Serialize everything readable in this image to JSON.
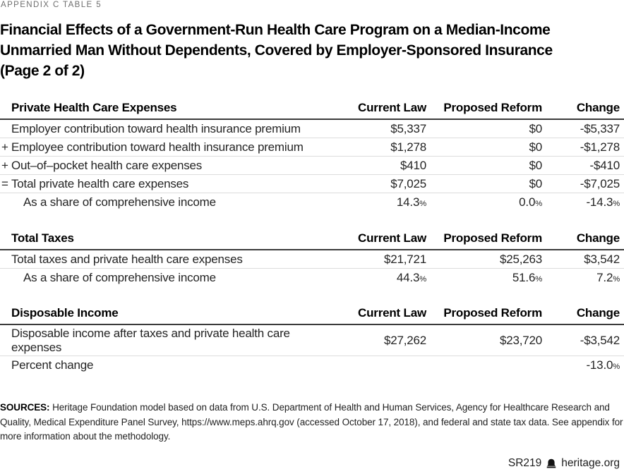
{
  "kicker": "APPENDIX C TABLE 5",
  "title": {
    "line1": "Financial Effects of a Government-Run Health Care Program on a Median-Income",
    "line2": "Unmarried Man Without Dependents, Covered by Employer-Sponsored Insurance",
    "line3": "(Page 2 of 2)"
  },
  "tables": [
    {
      "section": "Private Health Care Expenses",
      "columns": [
        "Current Law",
        "Proposed Reform",
        "Change"
      ],
      "rows": [
        {
          "marker": "",
          "label": "Employer contribution toward health insurance premium",
          "current_law": "$5,337",
          "proposed_reform": "$0",
          "change": "-$5,337"
        },
        {
          "marker": "+",
          "label": "Employee contribution toward health insurance premium",
          "current_law": "$1,278",
          "proposed_reform": "$0",
          "change": "-$1,278"
        },
        {
          "marker": "+",
          "label": "Out–of–pocket health care expenses",
          "current_law": "$410",
          "proposed_reform": "$0",
          "change": "-$410"
        },
        {
          "marker": "=",
          "label": "Total private health care expenses",
          "current_law": "$7,025",
          "proposed_reform": "$0",
          "change": "-$7,025"
        },
        {
          "marker": "",
          "label": "As a share of comprehensive income",
          "current_law": "14.3%",
          "proposed_reform": "0.0%",
          "change": "-14.3%"
        }
      ]
    },
    {
      "section": "Total Taxes",
      "columns": [
        "Current Law",
        "Proposed Reform",
        "Change"
      ],
      "rows": [
        {
          "marker": "",
          "label": "Total taxes and private health care expenses",
          "current_law": "$21,721",
          "proposed_reform": "$25,263",
          "change": "$3,542"
        },
        {
          "marker": "",
          "label": "As a share of comprehensive income",
          "current_law": "44.3%",
          "proposed_reform": "51.6%",
          "change": "7.2%"
        }
      ]
    },
    {
      "section": "Disposable Income",
      "columns": [
        "Current Law",
        "Proposed Reform",
        "Change"
      ],
      "rows": [
        {
          "marker": "",
          "label": "Disposable income after taxes and private health care expenses",
          "current_law": "$27,262",
          "proposed_reform": "$23,720",
          "change": "-$3,542"
        },
        {
          "marker": "",
          "label": "Percent change",
          "current_law": "",
          "proposed_reform": "",
          "change": "-13.0%"
        }
      ]
    }
  ],
  "sources": {
    "label": "SOURCES:",
    "text": " Heritage Foundation model based on data from U.S. Department of Health and Human Services, Agency for Healthcare Research and Quality, Medical Expenditure Panel Survey, https://www.meps.ahrq.gov (accessed October 17, 2018), and federal and state tax data. See appendix for more information about the methodology."
  },
  "footer": {
    "report_id": "SR219",
    "logo_icon": "heritage-bell-icon",
    "site": "heritage.org"
  }
}
